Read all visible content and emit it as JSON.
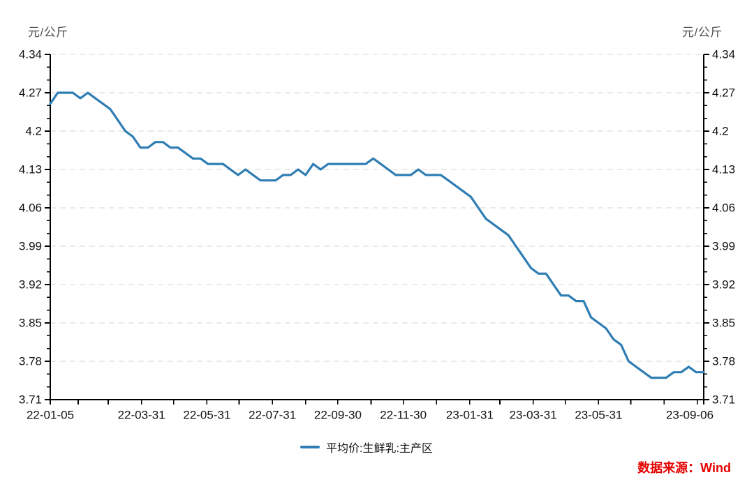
{
  "page": {
    "background": "#ffffff"
  },
  "header": {
    "unit_left": "元/公斤",
    "unit_right": "元/公斤"
  },
  "legend": {
    "label": "平均价:生鲜乳:主产区"
  },
  "source_note": "数据来源：Wind",
  "colors": {
    "line": "#2e7db3",
    "grid": "#d6d6d6",
    "axis": "#000000",
    "tick_text": "#111111",
    "unit_text": "#4d4d4d",
    "source_text": "#e60000"
  },
  "chart_data": {
    "type": "line",
    "title": "",
    "xlabel": "",
    "ylabel": "元/公斤",
    "grid": "horizontal-dashed",
    "legend_position": "bottom-center",
    "axes": "left-right-mirrored",
    "ylim": [
      3.71,
      4.34
    ],
    "y_ticks": [
      {
        "value": 4.34,
        "label": "4.34"
      },
      {
        "value": 4.27,
        "label": "4.27"
      },
      {
        "value": 4.2,
        "label": "4.2"
      },
      {
        "value": 4.13,
        "label": "4.13"
      },
      {
        "value": 4.06,
        "label": "4.06"
      },
      {
        "value": 3.99,
        "label": "3.99"
      },
      {
        "value": 3.92,
        "label": "3.92"
      },
      {
        "value": 3.85,
        "label": "3.85"
      },
      {
        "value": 3.78,
        "label": "3.78"
      },
      {
        "value": 3.71,
        "label": "3.71"
      }
    ],
    "y_minor_ticks_per_interval": 2,
    "x_range": [
      "2022-01-05",
      "2023-09-06"
    ],
    "x_ticks": [
      {
        "date": "2022-01-05",
        "label": "22-01-05"
      },
      {
        "date": "2022-01-31",
        "label": ""
      },
      {
        "date": "2022-02-28",
        "label": ""
      },
      {
        "date": "2022-03-31",
        "label": "22-03-31"
      },
      {
        "date": "2022-04-30",
        "label": ""
      },
      {
        "date": "2022-05-31",
        "label": "22-05-31"
      },
      {
        "date": "2022-06-30",
        "label": ""
      },
      {
        "date": "2022-07-31",
        "label": "22-07-31"
      },
      {
        "date": "2022-08-31",
        "label": ""
      },
      {
        "date": "2022-09-30",
        "label": "22-09-30"
      },
      {
        "date": "2022-10-31",
        "label": ""
      },
      {
        "date": "2022-11-30",
        "label": "22-11-30"
      },
      {
        "date": "2022-12-31",
        "label": ""
      },
      {
        "date": "2023-01-31",
        "label": "23-01-31"
      },
      {
        "date": "2023-02-28",
        "label": ""
      },
      {
        "date": "2023-03-31",
        "label": "23-03-31"
      },
      {
        "date": "2023-04-30",
        "label": ""
      },
      {
        "date": "2023-05-31",
        "label": "23-05-31"
      },
      {
        "date": "2023-06-30",
        "label": ""
      },
      {
        "date": "2023-07-31",
        "label": ""
      },
      {
        "date": "2023-08-31",
        "label": ""
      },
      {
        "date": "2023-09-06",
        "label": "23-09-06"
      }
    ],
    "series": [
      {
        "name": "平均价:生鲜乳:主产区",
        "color": "#2e7db3",
        "x": [
          "2022-01-05",
          "2022-01-12",
          "2022-01-19",
          "2022-01-26",
          "2022-02-02",
          "2022-02-09",
          "2022-02-16",
          "2022-02-23",
          "2022-03-02",
          "2022-03-09",
          "2022-03-16",
          "2022-03-23",
          "2022-03-30",
          "2022-04-06",
          "2022-04-13",
          "2022-04-20",
          "2022-04-27",
          "2022-05-04",
          "2022-05-11",
          "2022-05-18",
          "2022-05-25",
          "2022-06-01",
          "2022-06-08",
          "2022-06-15",
          "2022-06-22",
          "2022-06-29",
          "2022-07-06",
          "2022-07-13",
          "2022-07-20",
          "2022-07-27",
          "2022-08-03",
          "2022-08-10",
          "2022-08-17",
          "2022-08-24",
          "2022-08-31",
          "2022-09-07",
          "2022-09-14",
          "2022-09-21",
          "2022-09-28",
          "2022-10-05",
          "2022-10-12",
          "2022-10-19",
          "2022-10-26",
          "2022-11-02",
          "2022-11-09",
          "2022-11-16",
          "2022-11-23",
          "2022-11-30",
          "2022-12-07",
          "2022-12-14",
          "2022-12-21",
          "2022-12-28",
          "2023-01-04",
          "2023-01-11",
          "2023-01-18",
          "2023-01-25",
          "2023-02-01",
          "2023-02-08",
          "2023-02-15",
          "2023-02-22",
          "2023-03-01",
          "2023-03-08",
          "2023-03-15",
          "2023-03-22",
          "2023-03-29",
          "2023-04-05",
          "2023-04-12",
          "2023-04-19",
          "2023-04-26",
          "2023-05-03",
          "2023-05-10",
          "2023-05-17",
          "2023-05-24",
          "2023-05-31",
          "2023-06-07",
          "2023-06-14",
          "2023-06-21",
          "2023-06-28",
          "2023-07-05",
          "2023-07-12",
          "2023-07-19",
          "2023-07-26",
          "2023-08-02",
          "2023-08-09",
          "2023-08-16",
          "2023-08-23",
          "2023-08-30",
          "2023-09-06"
        ],
        "values": [
          4.25,
          4.27,
          4.27,
          4.27,
          4.26,
          4.27,
          4.26,
          4.25,
          4.24,
          4.22,
          4.2,
          4.19,
          4.17,
          4.17,
          4.18,
          4.18,
          4.17,
          4.17,
          4.16,
          4.15,
          4.15,
          4.14,
          4.14,
          4.14,
          4.13,
          4.12,
          4.13,
          4.12,
          4.11,
          4.11,
          4.11,
          4.12,
          4.12,
          4.13,
          4.12,
          4.14,
          4.13,
          4.14,
          4.14,
          4.14,
          4.14,
          4.14,
          4.14,
          4.15,
          4.14,
          4.13,
          4.12,
          4.12,
          4.12,
          4.13,
          4.12,
          4.12,
          4.12,
          4.11,
          4.1,
          4.09,
          4.08,
          4.06,
          4.04,
          4.03,
          4.02,
          4.01,
          3.99,
          3.97,
          3.95,
          3.94,
          3.94,
          3.92,
          3.9,
          3.9,
          3.89,
          3.89,
          3.86,
          3.85,
          3.84,
          3.82,
          3.81,
          3.78,
          3.77,
          3.76,
          3.75,
          3.75,
          3.75,
          3.76,
          3.76,
          3.77,
          3.76,
          3.76
        ]
      }
    ]
  }
}
